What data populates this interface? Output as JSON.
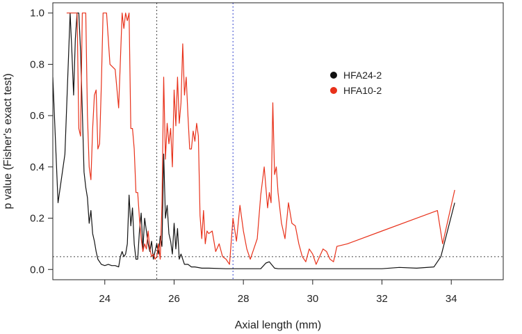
{
  "chart_data": {
    "type": "line",
    "xlabel": "Axial length (mm)",
    "ylabel": "p value (Fisher's exact test)",
    "xlim": [
      22.5,
      35.5
    ],
    "ylim": [
      -0.04,
      1.04
    ],
    "xticks": [
      24,
      26,
      28,
      30,
      32,
      34
    ],
    "yticks": [
      0.0,
      0.2,
      0.4,
      0.6,
      0.8,
      1.0
    ],
    "xtick_labels": [
      "24",
      "26",
      "28",
      "30",
      "32",
      "34"
    ],
    "ytick_labels": [
      "0.0",
      "0.2",
      "0.4",
      "0.6",
      "0.8",
      "1.0"
    ],
    "legend_position": "upper-right",
    "grid": false,
    "reference_lines": [
      {
        "orientation": "horizontal",
        "value": 0.05,
        "style": "dotted",
        "color": "#444444"
      },
      {
        "orientation": "vertical",
        "value": 25.5,
        "style": "dotted",
        "color": "#444444"
      },
      {
        "orientation": "vertical",
        "value": 27.7,
        "style": "dotted",
        "color": "#3344cc"
      }
    ],
    "series": [
      {
        "name": "HFA24-2",
        "color": "#111111",
        "x": [
          22.5,
          22.65,
          22.85,
          23.0,
          23.05,
          23.1,
          23.15,
          23.2,
          23.25,
          23.3,
          23.35,
          23.4,
          23.45,
          23.5,
          23.55,
          23.6,
          23.65,
          23.7,
          23.75,
          23.8,
          23.9,
          24.0,
          24.1,
          24.2,
          24.3,
          24.4,
          24.45,
          24.5,
          24.55,
          24.6,
          24.65,
          24.7,
          24.75,
          24.8,
          24.85,
          24.9,
          24.95,
          25.0,
          25.05,
          25.1,
          25.15,
          25.2,
          25.25,
          25.3,
          25.35,
          25.4,
          25.45,
          25.5,
          25.55,
          25.6,
          25.65,
          25.7,
          25.75,
          25.8,
          25.85,
          25.9,
          25.95,
          26.0,
          26.05,
          26.1,
          26.15,
          26.2,
          26.3,
          26.4,
          26.5,
          26.6,
          26.8,
          27.0,
          27.5,
          28.0,
          28.5,
          28.65,
          28.75,
          28.9,
          29.0,
          30.0,
          31.0,
          32.0,
          32.5,
          33.0,
          33.5,
          33.7,
          34.1
        ],
        "y": [
          0.75,
          0.26,
          0.45,
          1.0,
          0.85,
          0.68,
          0.9,
          1.0,
          1.0,
          0.85,
          0.62,
          0.38,
          0.32,
          0.28,
          0.18,
          0.23,
          0.14,
          0.11,
          0.07,
          0.04,
          0.02,
          0.015,
          0.02,
          0.015,
          0.015,
          0.01,
          0.05,
          0.07,
          0.05,
          0.06,
          0.1,
          0.29,
          0.17,
          0.24,
          0.1,
          0.04,
          0.04,
          0.15,
          0.22,
          0.08,
          0.2,
          0.15,
          0.1,
          0.07,
          0.11,
          0.04,
          0.07,
          0.1,
          0.06,
          0.13,
          0.09,
          0.45,
          0.2,
          0.25,
          0.14,
          0.11,
          0.06,
          0.18,
          0.08,
          0.16,
          0.04,
          0.06,
          0.02,
          0.02,
          0.01,
          0.01,
          0.005,
          0.005,
          0.003,
          0.003,
          0.003,
          0.025,
          0.03,
          0.005,
          0.003,
          0.003,
          0.003,
          0.003,
          0.008,
          0.005,
          0.01,
          0.05,
          0.26
        ]
      },
      {
        "name": "HFA10-2",
        "color": "#e8311a",
        "x": [
          22.9,
          23.0,
          23.05,
          23.1,
          23.2,
          23.25,
          23.3,
          23.35,
          23.4,
          23.45,
          23.5,
          23.55,
          23.6,
          23.65,
          23.7,
          23.75,
          23.8,
          23.85,
          23.9,
          23.95,
          24.0,
          24.05,
          24.15,
          24.3,
          24.4,
          24.5,
          24.55,
          24.6,
          24.65,
          24.7,
          24.75,
          24.8,
          24.85,
          24.9,
          24.95,
          25.0,
          25.05,
          25.1,
          25.15,
          25.2,
          25.25,
          25.3,
          25.35,
          25.4,
          25.45,
          25.5,
          25.55,
          25.6,
          25.65,
          25.7,
          25.75,
          25.8,
          25.85,
          25.9,
          25.95,
          26.0,
          26.05,
          26.1,
          26.15,
          26.2,
          26.25,
          26.3,
          26.35,
          26.4,
          26.45,
          26.5,
          26.55,
          26.6,
          26.65,
          26.7,
          26.75,
          26.8,
          26.85,
          26.9,
          26.95,
          27.0,
          27.1,
          27.2,
          27.3,
          27.4,
          27.5,
          27.6,
          27.7,
          27.8,
          27.9,
          28.0,
          28.1,
          28.2,
          28.3,
          28.4,
          28.5,
          28.6,
          28.7,
          28.75,
          28.8,
          28.85,
          28.9,
          28.95,
          29.0,
          29.1,
          29.2,
          29.3,
          29.4,
          29.5,
          29.6,
          29.7,
          29.8,
          29.9,
          30.0,
          30.1,
          30.2,
          30.3,
          30.4,
          30.5,
          30.6,
          30.7,
          31.0,
          32.0,
          33.0,
          33.6,
          33.75,
          34.1
        ],
        "y": [
          1.0,
          1.0,
          1.0,
          1.0,
          1.0,
          0.55,
          0.52,
          1.0,
          1.0,
          1.0,
          0.6,
          0.4,
          0.35,
          0.55,
          0.68,
          0.7,
          0.47,
          0.49,
          0.72,
          1.0,
          1.0,
          1.0,
          0.8,
          0.78,
          0.63,
          1.0,
          0.94,
          1.0,
          0.97,
          1.0,
          0.55,
          0.55,
          0.47,
          0.3,
          0.3,
          0.2,
          0.12,
          0.07,
          0.1,
          0.08,
          0.15,
          0.08,
          0.05,
          0.06,
          0.04,
          0.05,
          0.1,
          0.04,
          0.25,
          0.75,
          0.43,
          0.57,
          0.49,
          0.55,
          0.4,
          0.7,
          0.56,
          0.75,
          0.57,
          0.65,
          0.88,
          0.68,
          0.75,
          0.6,
          0.47,
          0.47,
          0.54,
          0.5,
          0.57,
          0.52,
          0.21,
          0.12,
          0.23,
          0.1,
          0.15,
          0.14,
          0.15,
          0.07,
          0.1,
          0.05,
          0.04,
          0.02,
          0.2,
          0.11,
          0.25,
          0.15,
          0.08,
          0.04,
          0.08,
          0.12,
          0.29,
          0.4,
          0.24,
          0.3,
          0.26,
          0.65,
          0.37,
          0.4,
          0.3,
          0.18,
          0.12,
          0.26,
          0.18,
          0.17,
          0.1,
          0.05,
          0.03,
          0.08,
          0.06,
          0.02,
          0.05,
          0.08,
          0.07,
          0.04,
          0.03,
          0.09,
          0.1,
          0.15,
          0.2,
          0.23,
          0.1,
          0.31
        ]
      }
    ]
  }
}
